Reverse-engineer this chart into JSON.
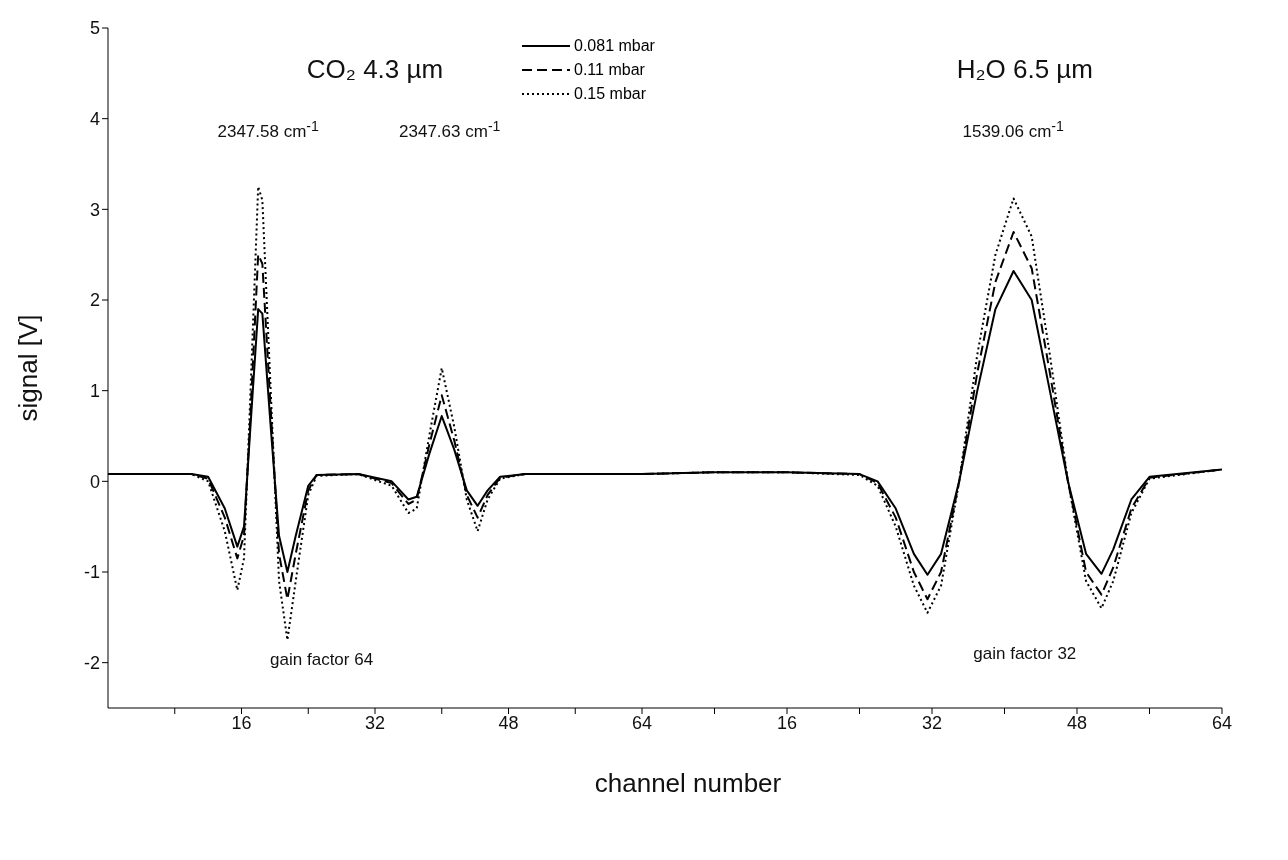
{
  "chart_data": [
    {
      "type": "line",
      "xlabel": "channel number",
      "ylabel": "signal [V]",
      "x": [
        0,
        10,
        12,
        14,
        15.5,
        16.3,
        17,
        18,
        18.5,
        19.5,
        20.5,
        21.5,
        22.5,
        24,
        25,
        30,
        34,
        36,
        37,
        38.5,
        40,
        41.5,
        43,
        44.3,
        45.5,
        47,
        50,
        64
      ],
      "series": [
        {
          "color": "#000000",
          "line_style": "solid",
          "values": [
            0.08,
            0.08,
            0.05,
            -0.3,
            -0.72,
            -0.5,
            0.5,
            1.9,
            1.85,
            0.6,
            -0.6,
            -1.0,
            -0.6,
            -0.05,
            0.07,
            0.08,
            0.0,
            -0.2,
            -0.17,
            0.3,
            0.72,
            0.35,
            -0.1,
            -0.27,
            -0.1,
            0.05,
            0.08,
            0.08
          ]
        },
        {
          "color": "#000000",
          "line_style": "dashed",
          "values": [
            0.08,
            0.08,
            0.03,
            -0.4,
            -0.85,
            -0.6,
            0.6,
            2.5,
            2.4,
            0.8,
            -0.8,
            -1.3,
            -0.8,
            -0.1,
            0.07,
            0.08,
            -0.02,
            -0.25,
            -0.2,
            0.4,
            0.95,
            0.45,
            -0.15,
            -0.4,
            -0.15,
            0.04,
            0.08,
            0.08
          ]
        },
        {
          "color": "#000000",
          "line_style": "dotted",
          "values": [
            0.08,
            0.08,
            0.0,
            -0.55,
            -1.2,
            -0.85,
            0.8,
            3.25,
            3.1,
            1.0,
            -1.1,
            -1.75,
            -1.1,
            -0.15,
            0.06,
            0.08,
            -0.05,
            -0.35,
            -0.3,
            0.5,
            1.25,
            0.6,
            -0.2,
            -0.55,
            -0.2,
            0.03,
            0.08,
            0.08
          ]
        }
      ],
      "xlim": [
        0,
        64
      ],
      "xticks": [
        {
          "value": 8,
          "label": null
        },
        16,
        {
          "value": 24,
          "label": null
        },
        32,
        {
          "value": 40,
          "label": null
        },
        48,
        {
          "value": 56,
          "label": null
        },
        64
      ],
      "ylim": [
        -2.5,
        5
      ],
      "yticks": [
        -2,
        -1,
        0,
        1,
        2,
        3,
        4,
        5
      ],
      "annotations": [
        "CO₂ 4.3 µm",
        "2347.58 cm$^{-1}$",
        "2347.63 cm$^{-1}$",
        "gain factor 64"
      ],
      "grid": false,
      "marker": "none"
    },
    {
      "type": "line",
      "x": [
        0,
        8,
        16,
        24,
        26,
        28,
        30,
        31.5,
        33,
        35,
        37,
        39,
        41,
        43,
        45,
        47,
        49,
        50.7,
        52,
        54,
        56,
        64
      ],
      "series": [
        {
          "name": "0.081 mbar",
          "color": "#000000",
          "line_style": "solid",
          "values": [
            0.08,
            0.1,
            0.1,
            0.08,
            0,
            -0.3,
            -0.8,
            -1.03,
            -0.8,
            0,
            1.0,
            1.9,
            2.32,
            2.0,
            1.0,
            0,
            -0.8,
            -1.02,
            -0.75,
            -0.2,
            0.05,
            0.13
          ]
        },
        {
          "name": "0.11 mbar",
          "color": "#000000",
          "line_style": "dashed",
          "values": [
            0.08,
            0.1,
            0.1,
            0.08,
            -0.02,
            -0.4,
            -1.0,
            -1.3,
            -1.0,
            0,
            1.2,
            2.2,
            2.75,
            2.35,
            1.2,
            0,
            -1.0,
            -1.25,
            -0.95,
            -0.3,
            0.04,
            0.13
          ]
        },
        {
          "name": "0.15 mbar",
          "color": "#000000",
          "line_style": "dotted",
          "values": [
            0.08,
            0.1,
            0.1,
            0.07,
            -0.05,
            -0.5,
            -1.15,
            -1.45,
            -1.15,
            0,
            1.4,
            2.5,
            3.12,
            2.7,
            1.4,
            0,
            -1.1,
            -1.4,
            -1.1,
            -0.35,
            0.03,
            0.13
          ]
        }
      ],
      "xlim": [
        0,
        64
      ],
      "xticks": [
        {
          "value": 8,
          "label": null
        },
        16,
        {
          "value": 24,
          "label": null
        },
        32,
        {
          "value": 40,
          "label": null
        },
        48,
        {
          "value": 56,
          "label": null
        },
        64
      ],
      "ylim": [
        -2.5,
        5
      ],
      "tick_labels": "x",
      "annotations": [
        "H₂O 6.5 µm",
        "1539.06 cm$^{-1}$",
        "gain factor 32"
      ],
      "legend": "top left",
      "grid": false,
      "marker": "none"
    }
  ]
}
